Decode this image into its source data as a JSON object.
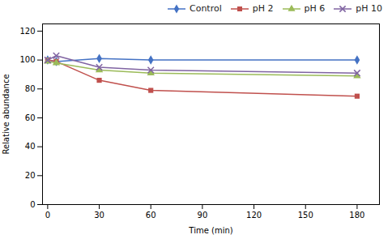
{
  "chart_data": {
    "type": "line",
    "xlabel": "Time (min)",
    "ylabel": "Relative abundance",
    "x": [
      0,
      5,
      30,
      60,
      180
    ],
    "series": [
      {
        "name": "Control",
        "color": "#4472C4",
        "marker": "diamond",
        "values": [
          100,
          99,
          101,
          100,
          100
        ]
      },
      {
        "name": "pH 2",
        "color": "#C0504D",
        "marker": "square",
        "values": [
          100,
          99,
          86,
          79,
          75
        ]
      },
      {
        "name": "pH 6",
        "color": "#9BBB59",
        "marker": "triangle",
        "values": [
          99,
          98,
          93,
          91,
          89
        ]
      },
      {
        "name": "pH 10",
        "color": "#8064A2",
        "marker": "x",
        "values": [
          100,
          103,
          95,
          93,
          91
        ]
      }
    ],
    "xlim": [
      -3,
      193
    ],
    "xticks": [
      0,
      30,
      60,
      90,
      120,
      150,
      180
    ],
    "ylim": [
      0,
      125
    ],
    "yticks": [
      0,
      20,
      40,
      60,
      80,
      100,
      120
    ],
    "grid": false,
    "legend": "upper right"
  }
}
